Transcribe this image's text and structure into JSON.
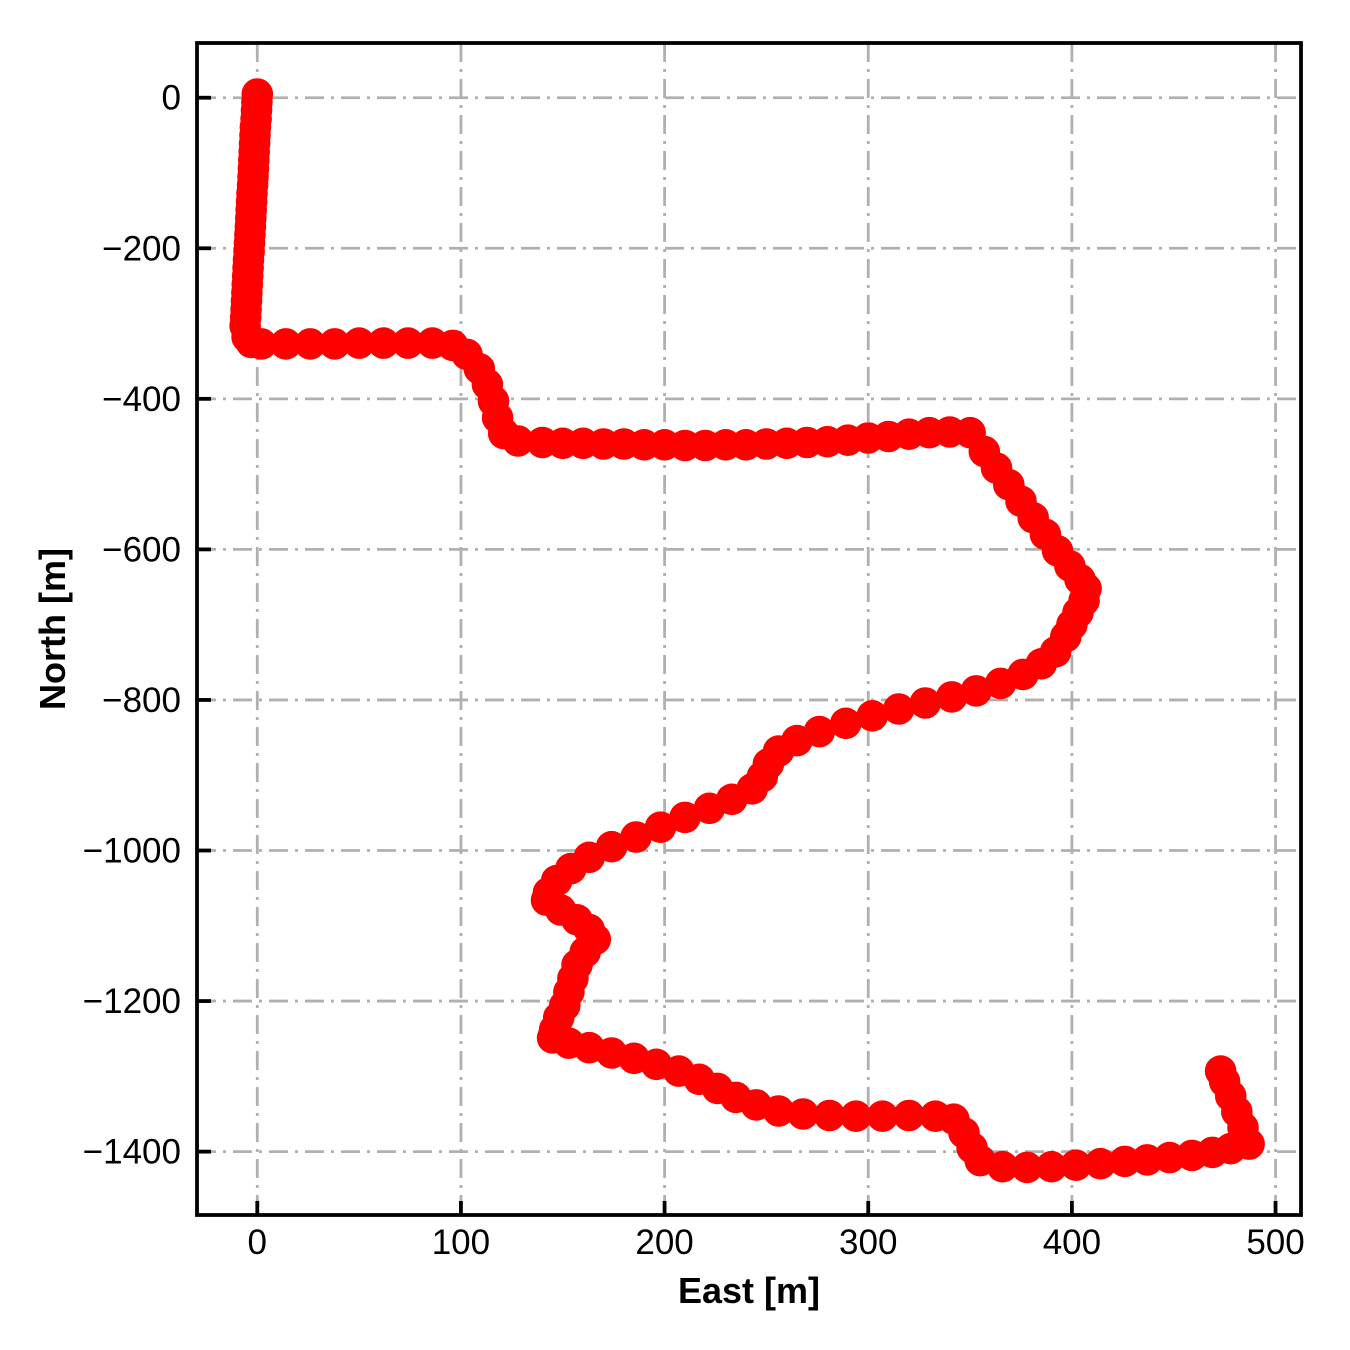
{
  "chart_data": {
    "type": "scatter",
    "title": "",
    "xlabel": "East [m]",
    "ylabel": "North [m]",
    "xlim": [
      -29.6,
      512.5
    ],
    "ylim": [
      -1484.2,
      72.7
    ],
    "grid": true,
    "grid_style": "dash-dot",
    "grid_color": "#b0b0b0",
    "legend": "none",
    "marker_color": "#ff0000",
    "marker_radius_px": 15.8,
    "xticks": [
      0,
      100,
      200,
      300,
      400,
      500
    ],
    "x_tick_labels": [
      "0",
      "100",
      "200",
      "300",
      "400",
      "500"
    ],
    "yticks": [
      0,
      -200,
      -400,
      -600,
      -800,
      -1000,
      -1200,
      -1400
    ],
    "y_tick_labels": [
      "0",
      "−200",
      "−400",
      "−600",
      "−800",
      "−1000",
      "−1200",
      "−1400"
    ],
    "points": [
      [
        0,
        5
      ],
      [
        -0.2,
        -6
      ],
      [
        -0.4,
        -17
      ],
      [
        -0.6,
        -28
      ],
      [
        -0.9,
        -39
      ],
      [
        -1.1,
        -50
      ],
      [
        -1.3,
        -61
      ],
      [
        -1.5,
        -72
      ],
      [
        -1.7,
        -83
      ],
      [
        -1.9,
        -94
      ],
      [
        -2.1,
        -105
      ],
      [
        -2.3,
        -116
      ],
      [
        -2.6,
        -127
      ],
      [
        -2.8,
        -138
      ],
      [
        -3,
        -149
      ],
      [
        -3.2,
        -160
      ],
      [
        -3.4,
        -171
      ],
      [
        -3.6,
        -182
      ],
      [
        -3.8,
        -193
      ],
      [
        -4,
        -204
      ],
      [
        -4.3,
        -215
      ],
      [
        -4.5,
        -226
      ],
      [
        -4.7,
        -237
      ],
      [
        -4.9,
        -248
      ],
      [
        -5.1,
        -259
      ],
      [
        -5.3,
        -270
      ],
      [
        -5.5,
        -281
      ],
      [
        -5.7,
        -292
      ],
      [
        -6,
        -303
      ],
      [
        -5,
        -318
      ],
      [
        -3,
        -325
      ],
      [
        2,
        -327
      ],
      [
        14,
        -327
      ],
      [
        26,
        -327
      ],
      [
        38,
        -327
      ],
      [
        50,
        -326
      ],
      [
        62,
        -326
      ],
      [
        74,
        -326
      ],
      [
        86,
        -326
      ],
      [
        96,
        -329
      ],
      [
        103,
        -341
      ],
      [
        109,
        -360
      ],
      [
        113,
        -381
      ],
      [
        116,
        -403
      ],
      [
        118,
        -425
      ],
      [
        121,
        -446
      ],
      [
        128,
        -456
      ],
      [
        140,
        -458
      ],
      [
        150,
        -459
      ],
      [
        160,
        -459
      ],
      [
        170,
        -460
      ],
      [
        180,
        -460
      ],
      [
        190,
        -461
      ],
      [
        200,
        -461
      ],
      [
        210,
        -462
      ],
      [
        220,
        -462
      ],
      [
        230,
        -461
      ],
      [
        240,
        -461
      ],
      [
        250,
        -460
      ],
      [
        260,
        -459
      ],
      [
        270,
        -458
      ],
      [
        280,
        -457
      ],
      [
        290,
        -455
      ],
      [
        300,
        -452
      ],
      [
        310,
        -450
      ],
      [
        320,
        -447
      ],
      [
        330,
        -445
      ],
      [
        340,
        -444
      ],
      [
        350,
        -445
      ],
      [
        357,
        -470
      ],
      [
        363,
        -492
      ],
      [
        369,
        -514
      ],
      [
        375,
        -536
      ],
      [
        381,
        -558
      ],
      [
        387,
        -580
      ],
      [
        393,
        -602
      ],
      [
        399,
        -622
      ],
      [
        404,
        -640
      ],
      [
        407,
        -652
      ],
      [
        406,
        -668
      ],
      [
        403,
        -684
      ],
      [
        400,
        -700
      ],
      [
        397,
        -716
      ],
      [
        392,
        -736
      ],
      [
        385,
        -752
      ],
      [
        376,
        -766
      ],
      [
        365,
        -778
      ],
      [
        353,
        -788
      ],
      [
        341,
        -796
      ],
      [
        328,
        -804
      ],
      [
        315,
        -812
      ],
      [
        302,
        -821
      ],
      [
        289,
        -831
      ],
      [
        276,
        -842
      ],
      [
        265,
        -854
      ],
      [
        256,
        -868
      ],
      [
        251,
        -885
      ],
      [
        248,
        -902
      ],
      [
        243,
        -918
      ],
      [
        233,
        -932
      ],
      [
        222,
        -944
      ],
      [
        210,
        -956
      ],
      [
        198,
        -969
      ],
      [
        186,
        -982
      ],
      [
        174,
        -995
      ],
      [
        163,
        -1009
      ],
      [
        154,
        -1024
      ],
      [
        147,
        -1040
      ],
      [
        143,
        -1056
      ],
      [
        142,
        -1066
      ],
      [
        149,
        -1079
      ],
      [
        157,
        -1092
      ],
      [
        163,
        -1105
      ],
      [
        166,
        -1118
      ],
      [
        161,
        -1135
      ],
      [
        157,
        -1152
      ],
      [
        155,
        -1170
      ],
      [
        153,
        -1188
      ],
      [
        151,
        -1206
      ],
      [
        148,
        -1222
      ],
      [
        146,
        -1238
      ],
      [
        145,
        -1249
      ],
      [
        153,
        -1256
      ],
      [
        163,
        -1262
      ],
      [
        174,
        -1269
      ],
      [
        185,
        -1276
      ],
      [
        196,
        -1284
      ],
      [
        207,
        -1293
      ],
      [
        217,
        -1304
      ],
      [
        226,
        -1316
      ],
      [
        235,
        -1328
      ],
      [
        245,
        -1338
      ],
      [
        256,
        -1346
      ],
      [
        268,
        -1350
      ],
      [
        281,
        -1352
      ],
      [
        294,
        -1353
      ],
      [
        307,
        -1353
      ],
      [
        320,
        -1352
      ],
      [
        333,
        -1353
      ],
      [
        342,
        -1357
      ],
      [
        347,
        -1375
      ],
      [
        351,
        -1395
      ],
      [
        355,
        -1412
      ],
      [
        366,
        -1420
      ],
      [
        378,
        -1421
      ],
      [
        390,
        -1420
      ],
      [
        402,
        -1418
      ],
      [
        414,
        -1416
      ],
      [
        426,
        -1413
      ],
      [
        437,
        -1411
      ],
      [
        448,
        -1408
      ],
      [
        459,
        -1405
      ],
      [
        469,
        -1401
      ],
      [
        478,
        -1396
      ],
      [
        487,
        -1390
      ],
      [
        484,
        -1368
      ],
      [
        481,
        -1347
      ],
      [
        478,
        -1326
      ],
      [
        475,
        -1307
      ],
      [
        473,
        -1293
      ]
    ]
  }
}
